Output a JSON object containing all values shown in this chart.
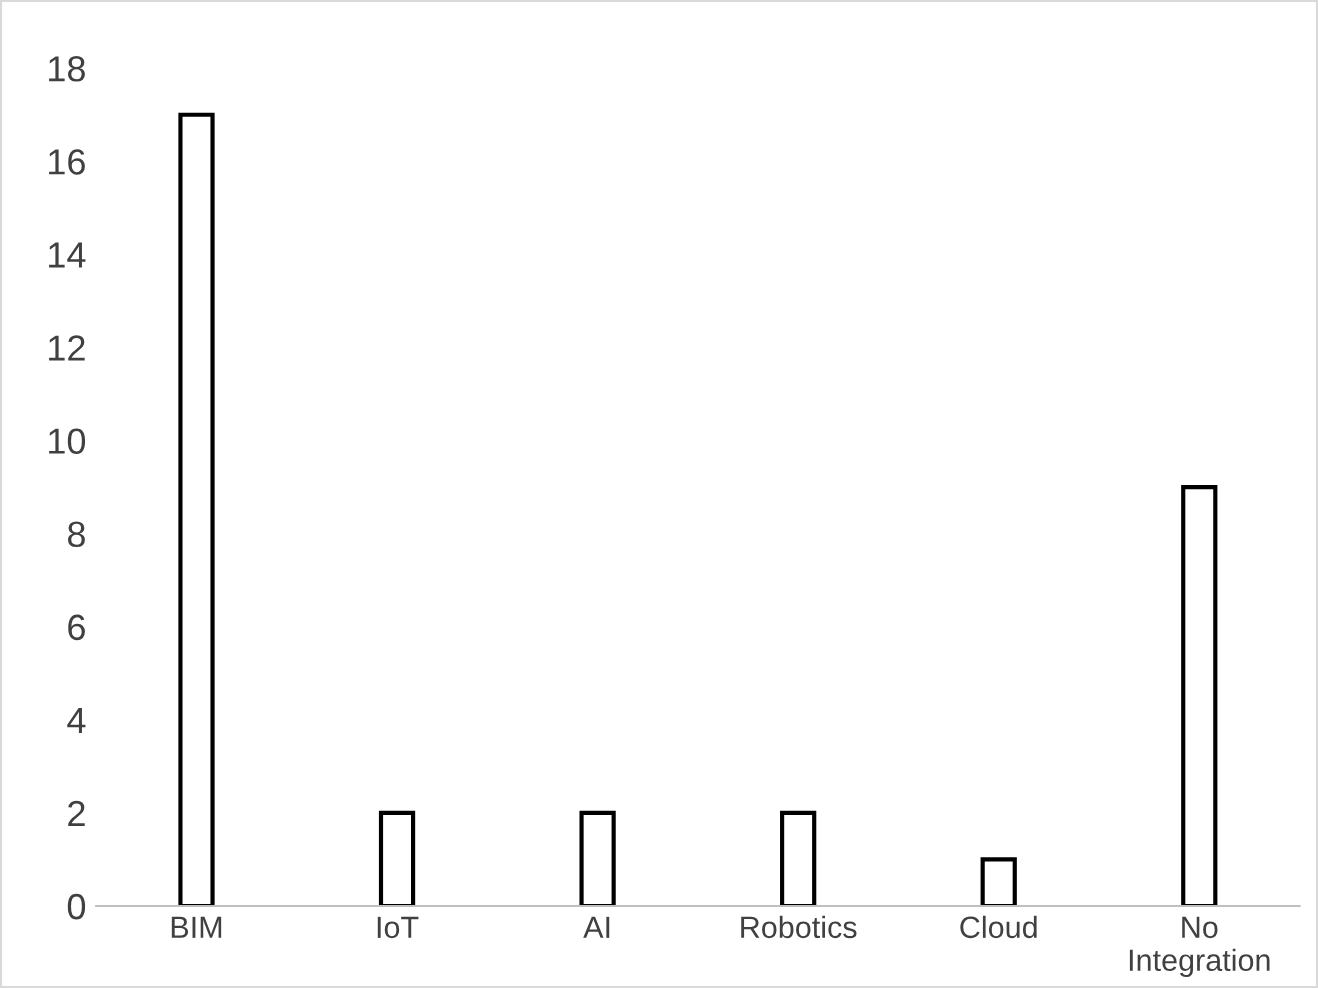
{
  "chart_data": {
    "type": "bar",
    "categories": [
      "BIM",
      "IoT",
      "AI",
      "Robotics",
      "Cloud",
      "No\nIntegration"
    ],
    "values": [
      17,
      2,
      2,
      2,
      1,
      9
    ],
    "color": "#ffffff",
    "ylim": [
      0,
      18
    ],
    "yticks": [
      0,
      2,
      4,
      6,
      8,
      10,
      12,
      14,
      16,
      18
    ],
    "grid": false
  }
}
